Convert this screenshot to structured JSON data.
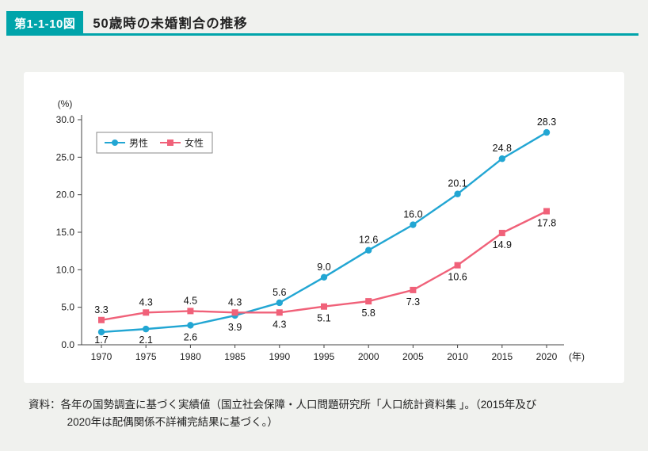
{
  "theme": {
    "accent_color": "#00a4aa",
    "background_color": "#f0f1ee",
    "card_color": "#ffffff"
  },
  "header": {
    "figure_label": "第1-1-10図",
    "title": "50歳時の未婚割合の推移"
  },
  "chart_data": {
    "type": "line",
    "title": "50歳時の未婚割合の推移",
    "unit_label": "(%)",
    "x_unit_label": "(年)",
    "categories": [
      "1970",
      "1975",
      "1980",
      "1985",
      "1990",
      "1995",
      "2000",
      "2005",
      "2010",
      "2015",
      "2020"
    ],
    "series": [
      {
        "name": "男性",
        "color": "#22a6d3",
        "marker": "circle",
        "values": [
          1.7,
          2.1,
          2.6,
          3.9,
          5.6,
          9.0,
          12.6,
          16.0,
          20.1,
          24.8,
          28.3
        ]
      },
      {
        "name": "女性",
        "color": "#f06179",
        "marker": "square",
        "values": [
          3.3,
          4.3,
          4.5,
          4.3,
          4.3,
          5.1,
          5.8,
          7.3,
          10.6,
          14.9,
          17.8
        ]
      }
    ],
    "ylim": [
      0,
      30
    ],
    "ytick_step": 5,
    "ytick_labels": [
      "0.0",
      "5.0",
      "10.0",
      "15.0",
      "20.0",
      "25.0",
      "30.0"
    ],
    "legend_position": "top-left",
    "grid": false
  },
  "footer": {
    "source_line1": "資料：各年の国勢調査に基づく実績値（国立社会保障・人口問題研究所「人口統計資料集 」。（2015年及び",
    "source_line2": "2020年は配偶関係不詳補完結果に基づく。）"
  }
}
